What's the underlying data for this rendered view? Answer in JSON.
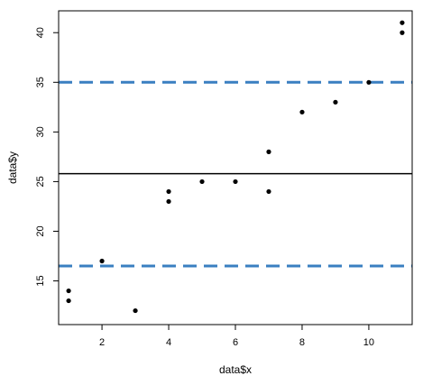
{
  "chart_data": {
    "type": "scatter",
    "xlabel": "data$x",
    "ylabel": "data$y",
    "xlim": [
      0.7,
      11.3
    ],
    "ylim": [
      10.6,
      42.2
    ],
    "x_ticks": [
      2,
      4,
      6,
      8,
      10
    ],
    "y_ticks": [
      15,
      20,
      25,
      30,
      35,
      40
    ],
    "x_tick_labels": [
      "2",
      "4",
      "6",
      "8",
      "10"
    ],
    "y_tick_labels": [
      "15",
      "20",
      "25",
      "30",
      "35",
      "40"
    ],
    "points": [
      {
        "x": 1,
        "y": 14
      },
      {
        "x": 1,
        "y": 13
      },
      {
        "x": 2,
        "y": 17
      },
      {
        "x": 3,
        "y": 12
      },
      {
        "x": 4,
        "y": 24
      },
      {
        "x": 4,
        "y": 23
      },
      {
        "x": 5,
        "y": 25
      },
      {
        "x": 6,
        "y": 25
      },
      {
        "x": 7,
        "y": 28
      },
      {
        "x": 7,
        "y": 24
      },
      {
        "x": 8,
        "y": 32
      },
      {
        "x": 9,
        "y": 33
      },
      {
        "x": 10,
        "y": 35
      },
      {
        "x": 11,
        "y": 41
      },
      {
        "x": 11,
        "y": 40
      }
    ],
    "reference_lines": [
      {
        "orientation": "horizontal",
        "y": 25.8,
        "style": "solid",
        "color": "#000000"
      },
      {
        "orientation": "horizontal",
        "y": 35.0,
        "style": "dashed",
        "color": "#3a7fc1"
      },
      {
        "orientation": "horizontal",
        "y": 16.5,
        "style": "dashed",
        "color": "#3a7fc1"
      }
    ],
    "point_color": "#000000",
    "grid": false
  }
}
